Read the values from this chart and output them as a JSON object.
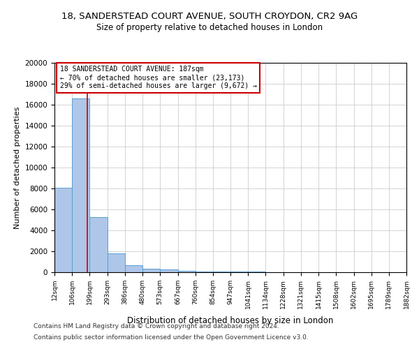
{
  "title1": "18, SANDERSTEAD COURT AVENUE, SOUTH CROYDON, CR2 9AG",
  "title2": "Size of property relative to detached houses in London",
  "xlabel": "Distribution of detached houses by size in London",
  "ylabel": "Number of detached properties",
  "bin_edges": [
    12,
    106,
    199,
    293,
    386,
    480,
    573,
    667,
    760,
    854,
    947,
    1041,
    1134,
    1228,
    1321,
    1415,
    1508,
    1602,
    1695,
    1789,
    1882
  ],
  "bar_heights": [
    8050,
    16600,
    5300,
    1800,
    700,
    350,
    250,
    150,
    100,
    70,
    50,
    40,
    30,
    25,
    20,
    15,
    12,
    10,
    8,
    6
  ],
  "bar_color": "#aec6e8",
  "bar_edge_color": "#5a9fd4",
  "property_size": 187,
  "property_label": "18 SANDERSTEAD COURT AVENUE: 187sqm",
  "pct_smaller": 70,
  "n_smaller": 23173,
  "pct_larger": 29,
  "n_larger": 9672,
  "vline_color": "#cc0000",
  "annotation_box_color": "#cc0000",
  "ylim": [
    0,
    20000
  ],
  "yticks": [
    0,
    2000,
    4000,
    6000,
    8000,
    10000,
    12000,
    14000,
    16000,
    18000,
    20000
  ],
  "footer1": "Contains HM Land Registry data © Crown copyright and database right 2024.",
  "footer2": "Contains public sector information licensed under the Open Government Licence v3.0.",
  "bg_color": "#ffffff",
  "grid_color": "#cccccc"
}
